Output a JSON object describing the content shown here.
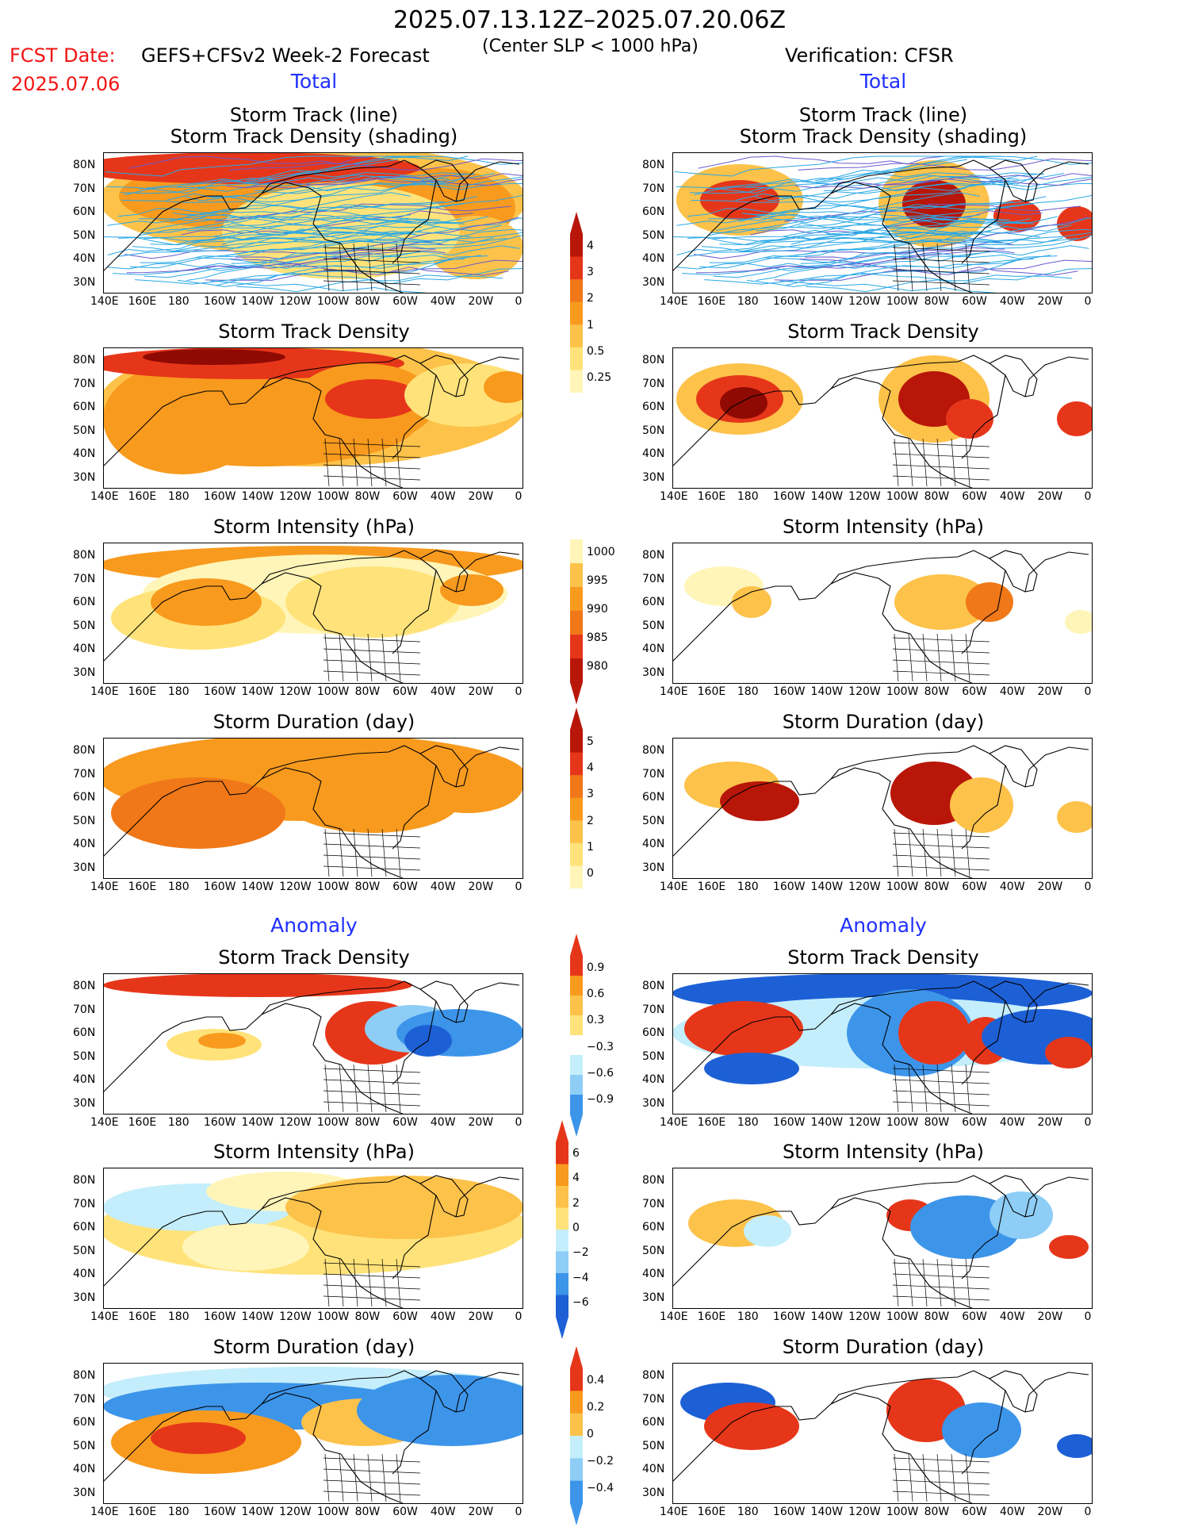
{
  "header": {
    "title": "2025.07.13.12Z–2025.07.20.06Z",
    "fcst_label": "FCST Date:",
    "fcst_date": "2025.07.06",
    "model": "GEFS+CFSv2 Week-2 Forecast",
    "slp_note": "(Center SLP < 1000 hPa)",
    "verification": "Verification: CFSR"
  },
  "sections": {
    "total_left": "Total",
    "total_right": "Total",
    "anomaly_left": "Anomaly",
    "anomaly_right": "Anomaly"
  },
  "panels": {
    "track_title_1": "Storm Track (line)",
    "track_title_2": "Storm Track Density (shading)",
    "density": "Storm Track Density",
    "intensity": "Storm Intensity (hPa)",
    "duration": "Storm Duration (day)"
  },
  "axes": {
    "lat": [
      "80N",
      "70N",
      "60N",
      "50N",
      "40N",
      "30N"
    ],
    "lon": [
      "140E",
      "160E",
      "180",
      "160W",
      "140W",
      "120W",
      "100W",
      "80W",
      "60W",
      "40W",
      "20W",
      "0"
    ]
  },
  "colorbars": {
    "density": [
      "4",
      "3",
      "2",
      "1",
      "0.5",
      "0.25"
    ],
    "intensity": [
      "1000",
      "995",
      "990",
      "985",
      "980"
    ],
    "duration": [
      "5",
      "4",
      "3",
      "2",
      "1",
      "0"
    ],
    "density_anom": [
      "0.9",
      "0.6",
      "0.3",
      "−0.3",
      "−0.6",
      "−0.9"
    ],
    "intensity_anom": [
      "6",
      "4",
      "2",
      "0",
      "−2",
      "−4",
      "−6"
    ],
    "duration_anom": [
      "0.4",
      "0.2",
      "0",
      "−0.2",
      "−0.4"
    ]
  },
  "colors": {
    "red_text": "#f21414",
    "blue_text": "#1f2fff"
  }
}
